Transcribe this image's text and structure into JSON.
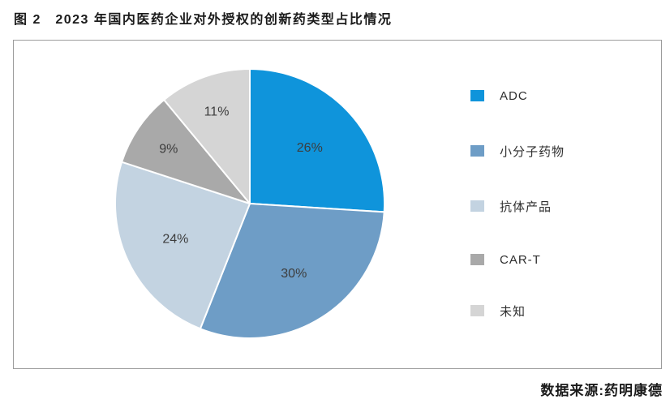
{
  "header": {
    "title": "图 2　2023 年国内医药企业对外授权的创新药类型占比情况"
  },
  "footer": {
    "source": "数据来源:药明康德"
  },
  "chart_data": {
    "type": "pie",
    "title": "图 2　2023 年国内医药企业对外授权的创新药类型占比情况",
    "categories": [
      "ADC",
      "小分子药物",
      "抗体产品",
      "CAR-T",
      "未知"
    ],
    "values": [
      26,
      30,
      24,
      9,
      11
    ],
    "labels": [
      "26%",
      "30%",
      "24%",
      "9%",
      "11%"
    ],
    "colors": [
      "#0F94DB",
      "#6E9DC6",
      "#C3D3E1",
      "#A9A9A9",
      "#D5D5D5"
    ],
    "unit": "%",
    "start_angle_deg": 0,
    "direction": "clockwise",
    "legend_position": "right",
    "source": "数据来源:药明康德"
  }
}
